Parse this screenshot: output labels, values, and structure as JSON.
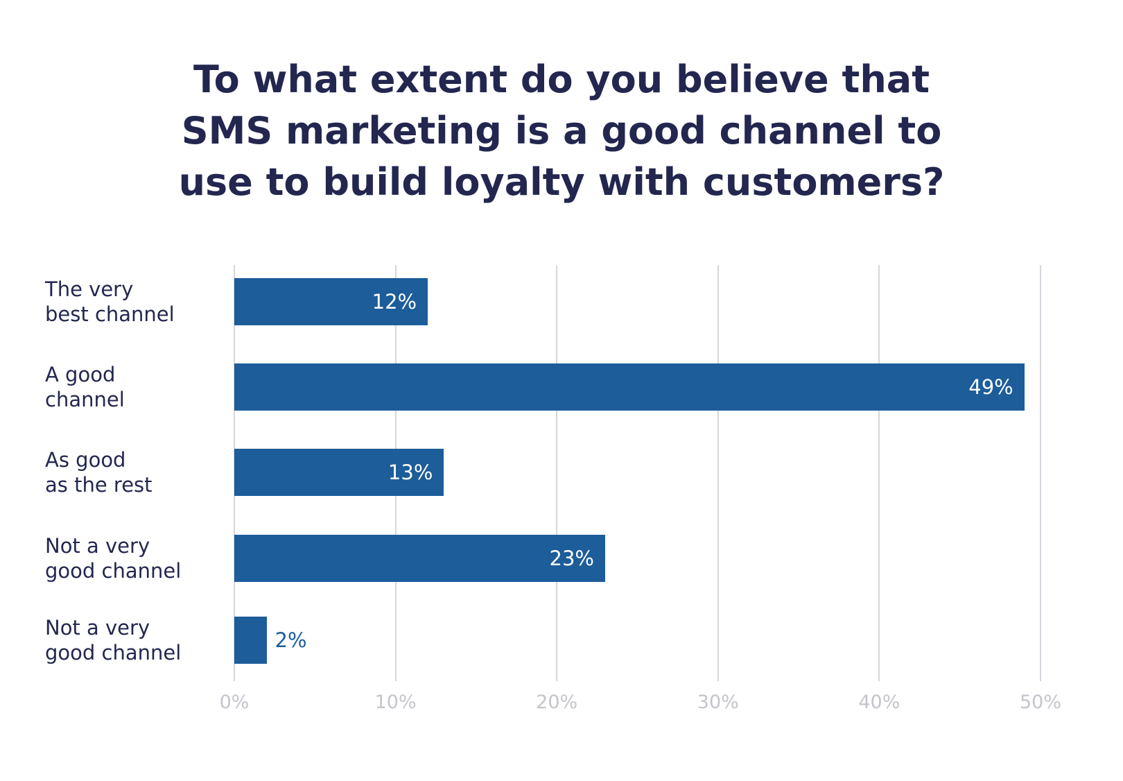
{
  "chart_data": {
    "type": "bar",
    "orientation": "horizontal",
    "title": "To what extent do you believe that\nSMS marketing is a good channel to\nuse to build loyalty with customers?",
    "categories": [
      "The very\nbest channel",
      "A good\nchannel",
      "As good\nas the rest",
      "Not a very\ngood channel",
      "Not a very\ngood channel"
    ],
    "values": [
      12,
      49,
      13,
      23,
      2
    ],
    "value_labels": [
      "12%",
      "49%",
      "13%",
      "23%",
      "2%"
    ],
    "color": "#1c5d9a",
    "xlim": [
      0,
      50
    ],
    "xticks": [
      {
        "value": 0,
        "label": "0%"
      },
      {
        "value": 10,
        "label": "10%"
      },
      {
        "value": 20,
        "label": "20%"
      },
      {
        "value": 30,
        "label": "30%"
      },
      {
        "value": 40,
        "label": "40%"
      },
      {
        "value": 50,
        "label": "50%"
      }
    ],
    "grid": true
  }
}
